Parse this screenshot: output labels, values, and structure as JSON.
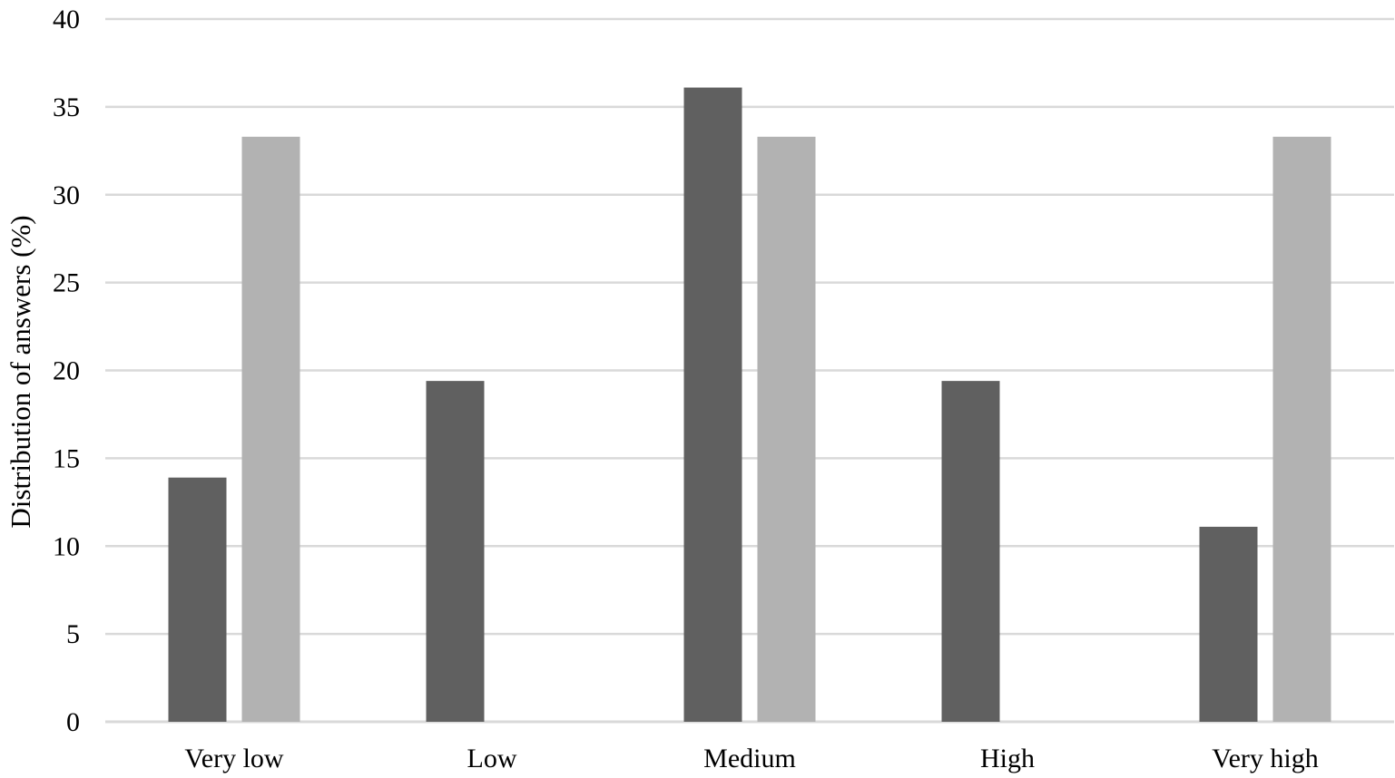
{
  "chart_data": {
    "type": "bar",
    "title": "",
    "xlabel": "",
    "ylabel": "Distribution of answers (%)",
    "ylim": [
      0,
      40
    ],
    "yticks": [
      0,
      5,
      10,
      15,
      20,
      25,
      30,
      35,
      40
    ],
    "grid": true,
    "legend": "none",
    "categories": [
      "Very low",
      "Low",
      "Medium",
      "High",
      "Very high"
    ],
    "series": [
      {
        "values": [
          13.9,
          19.4,
          36.1,
          19.4,
          11.1
        ],
        "color": "#606060"
      },
      {
        "values": [
          33.3,
          0,
          33.3,
          0,
          33.3
        ],
        "color": "#b2b2b2"
      }
    ],
    "gridline_color": "#d9d9d9",
    "axis_line_color": "#d9d9d9"
  }
}
